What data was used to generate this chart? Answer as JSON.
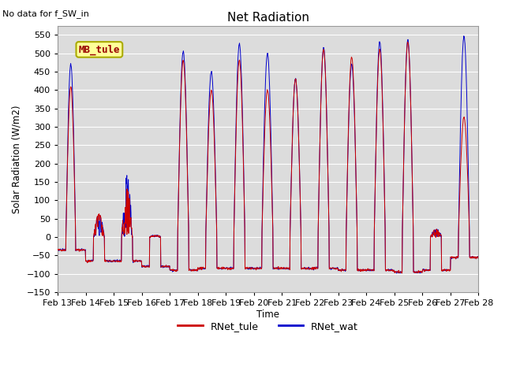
{
  "title": "Net Radiation",
  "subtitle": "No data for f_SW_in",
  "xlabel": "Time",
  "ylabel": "Solar Radiation (W/m2)",
  "ylim": [
    -150,
    575
  ],
  "yticks": [
    -150,
    -100,
    -50,
    0,
    50,
    100,
    150,
    200,
    250,
    300,
    350,
    400,
    450,
    500,
    550
  ],
  "bg_color": "#dcdcdc",
  "fig_color": "#ffffff",
  "line_color_tule": "#cc0000",
  "line_color_wat": "#0000cc",
  "legend_label_tule": "RNet_tule",
  "legend_label_wat": "RNet_wat",
  "box_label": "MB_tule",
  "box_facecolor": "#ffff99",
  "box_edgecolor": "#aaaa00",
  "box_textcolor": "#990000",
  "start_day": 13,
  "end_day": 28,
  "n_days": 15,
  "points_per_day": 96
}
